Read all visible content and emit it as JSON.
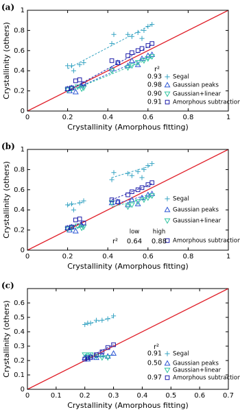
{
  "chart_data": [
    {
      "type": "scatter",
      "panel_label": "(a)",
      "xlabel": "Crystallinity (Amorphous fitting)",
      "ylabel": "Crystallinity (others)",
      "xlim": [
        0,
        1
      ],
      "ylim": [
        0,
        1
      ],
      "xticks": [
        0,
        0.2,
        0.4,
        0.6,
        0.8,
        1
      ],
      "yticks": [
        0,
        0.2,
        0.4,
        0.6,
        0.8,
        1
      ],
      "r2_title": "r²",
      "series": [
        {
          "name": "Segal",
          "color": "#35a3c2",
          "marker": "plus",
          "r2": 0.93,
          "x": [
            0.2,
            0.22,
            0.23,
            0.26,
            0.28,
            0.42,
            0.43,
            0.5,
            0.52,
            0.55,
            0.57,
            0.58,
            0.6,
            0.62
          ],
          "y": [
            0.45,
            0.45,
            0.4,
            0.46,
            0.48,
            0.67,
            0.76,
            0.76,
            0.74,
            0.78,
            0.72,
            0.8,
            0.84,
            0.86
          ],
          "fits": [
            [
              0.2,
              0.42,
              0.62,
              0.86
            ]
          ]
        },
        {
          "name": "Gaussian peaks",
          "color": "#2a55d4",
          "marker": "triangle-up",
          "r2": 0.98,
          "x": [
            0.2,
            0.21,
            0.22,
            0.24,
            0.27,
            0.42,
            0.45,
            0.5,
            0.52,
            0.55,
            0.57,
            0.6,
            0.62
          ],
          "y": [
            0.22,
            0.2,
            0.23,
            0.19,
            0.25,
            0.42,
            0.48,
            0.45,
            0.5,
            0.46,
            0.52,
            0.55,
            0.56
          ],
          "fits": [
            [
              0.2,
              0.19,
              0.62,
              0.56
            ]
          ]
        },
        {
          "name": "Gaussian+linear",
          "color": "#2ec4a0",
          "marker": "triangle-down",
          "r2": 0.9,
          "r2_label": "0.90",
          "x": [
            0.2,
            0.22,
            0.25,
            0.27,
            0.28,
            0.42,
            0.5,
            0.52,
            0.55,
            0.58,
            0.6,
            0.62
          ],
          "y": [
            0.21,
            0.22,
            0.24,
            0.22,
            0.23,
            0.4,
            0.43,
            0.45,
            0.48,
            0.5,
            0.52,
            0.54
          ],
          "fits": [
            [
              0.2,
              0.19,
              0.62,
              0.53
            ]
          ]
        },
        {
          "name": "Amorphous subtraction",
          "color": "#1a1aa8",
          "marker": "square",
          "r2": 0.91,
          "x": [
            0.2,
            0.22,
            0.24,
            0.26,
            0.28,
            0.42,
            0.45,
            0.5,
            0.52,
            0.55,
            0.57,
            0.6,
            0.62
          ],
          "y": [
            0.22,
            0.23,
            0.3,
            0.31,
            0.27,
            0.5,
            0.48,
            0.55,
            0.58,
            0.6,
            0.62,
            0.65,
            0.67
          ],
          "fits": [
            [
              0.2,
              0.2,
              0.62,
              0.66
            ]
          ]
        }
      ]
    },
    {
      "type": "scatter",
      "panel_label": "(b)",
      "xlabel": "Crystallinity (Amorphous fitting)",
      "ylabel": "Crystallinity (others)",
      "xlim": [
        0,
        1
      ],
      "ylim": [
        0,
        1
      ],
      "xticks": [
        0,
        0.2,
        0.4,
        0.6,
        0.8,
        1
      ],
      "yticks": [
        0,
        0.2,
        0.4,
        0.6,
        0.8,
        1
      ],
      "r2_title": "r²",
      "r2_columns": [
        "low",
        "high"
      ],
      "r2": [
        0.64,
        0.88
      ],
      "r2_color": "#2a55d4",
      "series": [
        {
          "name": "Segal",
          "color": "#35a3c2",
          "marker": "plus",
          "x": [
            0.2,
            0.22,
            0.23,
            0.26,
            0.28,
            0.42,
            0.43,
            0.5,
            0.52,
            0.55,
            0.57,
            0.58,
            0.6,
            0.62
          ],
          "y": [
            0.45,
            0.46,
            0.4,
            0.47,
            0.49,
            0.7,
            0.77,
            0.76,
            0.74,
            0.78,
            0.72,
            0.8,
            0.84,
            0.86
          ],
          "fits": [
            [
              0.2,
              0.44,
              0.28,
              0.48
            ],
            [
              0.42,
              0.72,
              0.62,
              0.84
            ]
          ]
        },
        {
          "name": "Gaussian peaks",
          "color": "#2a55d4",
          "marker": "triangle-up",
          "x": [
            0.2,
            0.21,
            0.22,
            0.24,
            0.27,
            0.42,
            0.45,
            0.5,
            0.52,
            0.55,
            0.57,
            0.6,
            0.62
          ],
          "y": [
            0.22,
            0.2,
            0.23,
            0.19,
            0.25,
            0.47,
            0.48,
            0.45,
            0.5,
            0.46,
            0.52,
            0.55,
            0.56
          ],
          "fits": [
            [
              0.2,
              0.2,
              0.28,
              0.24
            ],
            [
              0.42,
              0.45,
              0.62,
              0.56
            ]
          ]
        },
        {
          "name": "Gaussian+linear",
          "color": "#2ec4a0",
          "marker": "triangle-down",
          "x": [
            0.2,
            0.22,
            0.25,
            0.27,
            0.28,
            0.42,
            0.5,
            0.52,
            0.55,
            0.58,
            0.6,
            0.62
          ],
          "y": [
            0.21,
            0.22,
            0.24,
            0.22,
            0.23,
            0.47,
            0.43,
            0.45,
            0.48,
            0.5,
            0.52,
            0.54
          ],
          "fits": [
            [
              0.2,
              0.21,
              0.28,
              0.23
            ],
            [
              0.42,
              0.43,
              0.62,
              0.53
            ]
          ]
        },
        {
          "name": "Amorphous subtraction",
          "color": "#1a1aa8",
          "marker": "square",
          "x": [
            0.2,
            0.22,
            0.24,
            0.26,
            0.28,
            0.42,
            0.45,
            0.5,
            0.52,
            0.55,
            0.57,
            0.6,
            0.62
          ],
          "y": [
            0.22,
            0.23,
            0.3,
            0.31,
            0.27,
            0.5,
            0.48,
            0.55,
            0.58,
            0.6,
            0.62,
            0.65,
            0.67
          ],
          "fits": [
            [
              0.2,
              0.21,
              0.28,
              0.29
            ],
            [
              0.42,
              0.5,
              0.62,
              0.66
            ]
          ]
        }
      ]
    },
    {
      "type": "scatter",
      "panel_label": "(c)",
      "xlabel": "Crystallinity (Amorphous fitting)",
      "ylabel": "Crystallinity (others)",
      "xlim": [
        0,
        0.7
      ],
      "ylim": [
        0,
        0.7
      ],
      "xticks": [
        0,
        0.1,
        0.2,
        0.3,
        0.4,
        0.5,
        0.6,
        0.7
      ],
      "yticks": [
        0,
        0.1,
        0.2,
        0.3,
        0.4,
        0.5,
        0.6
      ],
      "r2_title": "r²",
      "series": [
        {
          "name": "Segal",
          "color": "#35a3c2",
          "marker": "plus",
          "r2": 0.91,
          "x": [
            0.2,
            0.21,
            0.22,
            0.24,
            0.26,
            0.28,
            0.3
          ],
          "y": [
            0.45,
            0.46,
            0.46,
            0.48,
            0.48,
            0.49,
            0.51
          ],
          "fits": [
            [
              0.2,
              0.45,
              0.3,
              0.5
            ]
          ]
        },
        {
          "name": "Gaussian peaks",
          "color": "#2a55d4",
          "marker": "triangle-up",
          "r2": 0.5,
          "r2_label": "0.50",
          "x": [
            0.2,
            0.21,
            0.22,
            0.24,
            0.26,
            0.28,
            0.3
          ],
          "y": [
            0.22,
            0.21,
            0.23,
            0.22,
            0.24,
            0.23,
            0.25
          ],
          "fits": [
            [
              0.2,
              0.21,
              0.3,
              0.24
            ]
          ]
        },
        {
          "name": "Gaussian+linear",
          "color": "#2ec4a0",
          "marker": "triangle-down",
          "x": [
            0.2,
            0.21,
            0.22,
            0.24,
            0.26,
            0.28
          ],
          "y": [
            0.24,
            0.23,
            0.24,
            0.23,
            0.22,
            0.22
          ],
          "fits": [
            [
              0.2,
              0.24,
              0.28,
              0.22
            ]
          ]
        },
        {
          "name": "Amorphous subtraction",
          "color": "#1a1aa8",
          "marker": "square",
          "r2": 0.97,
          "x": [
            0.2,
            0.21,
            0.22,
            0.24,
            0.26,
            0.28,
            0.3
          ],
          "y": [
            0.21,
            0.22,
            0.22,
            0.24,
            0.26,
            0.29,
            0.31
          ],
          "fits": [
            [
              0.2,
              0.21,
              0.3,
              0.31
            ]
          ]
        }
      ]
    }
  ]
}
